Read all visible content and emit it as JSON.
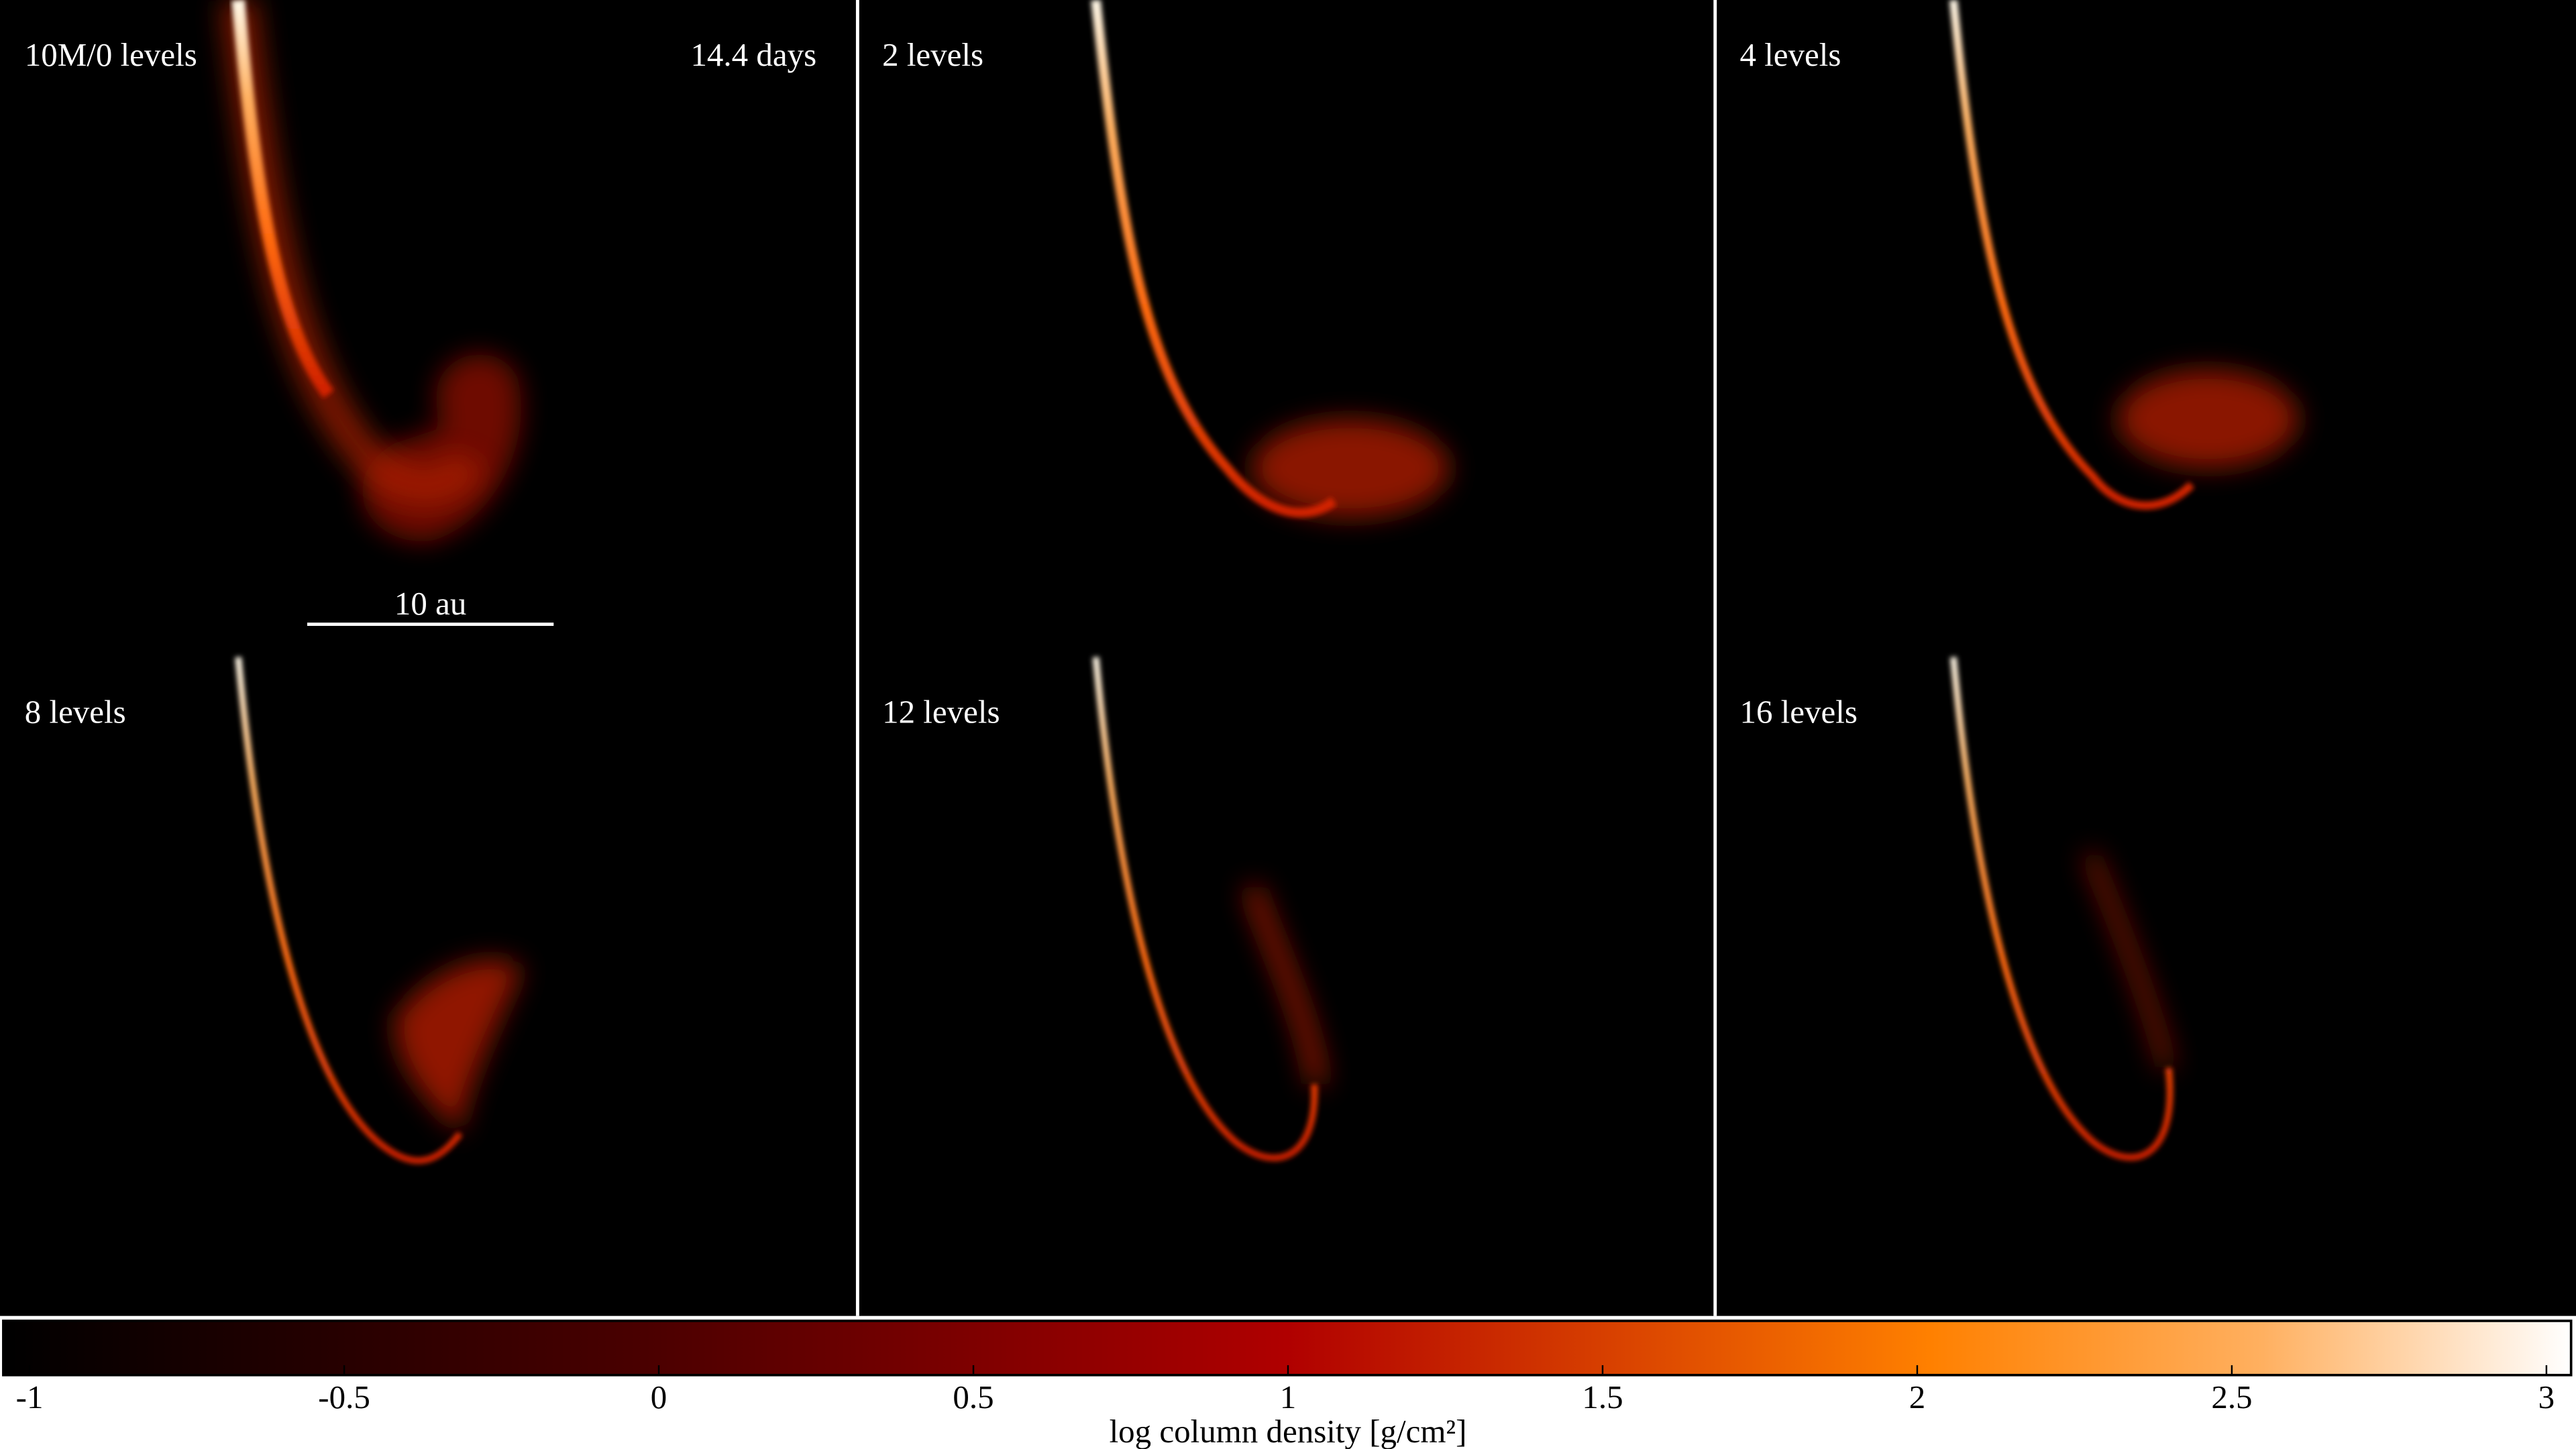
{
  "panels": [
    {
      "label": "10M/0 levels",
      "time": "14.4 days",
      "scale_bar": "10 au"
    },
    {
      "label": "2 levels"
    },
    {
      "label": "4 levels"
    },
    {
      "label": "8 levels"
    },
    {
      "label": "12 levels"
    },
    {
      "label": "16 levels"
    }
  ],
  "colorbar": {
    "label": "log column density [g/cm²]",
    "lim": [
      -1,
      3
    ],
    "ticks": [
      -1,
      -0.5,
      0,
      0.5,
      1,
      1.5,
      2,
      2.5,
      3
    ]
  }
}
